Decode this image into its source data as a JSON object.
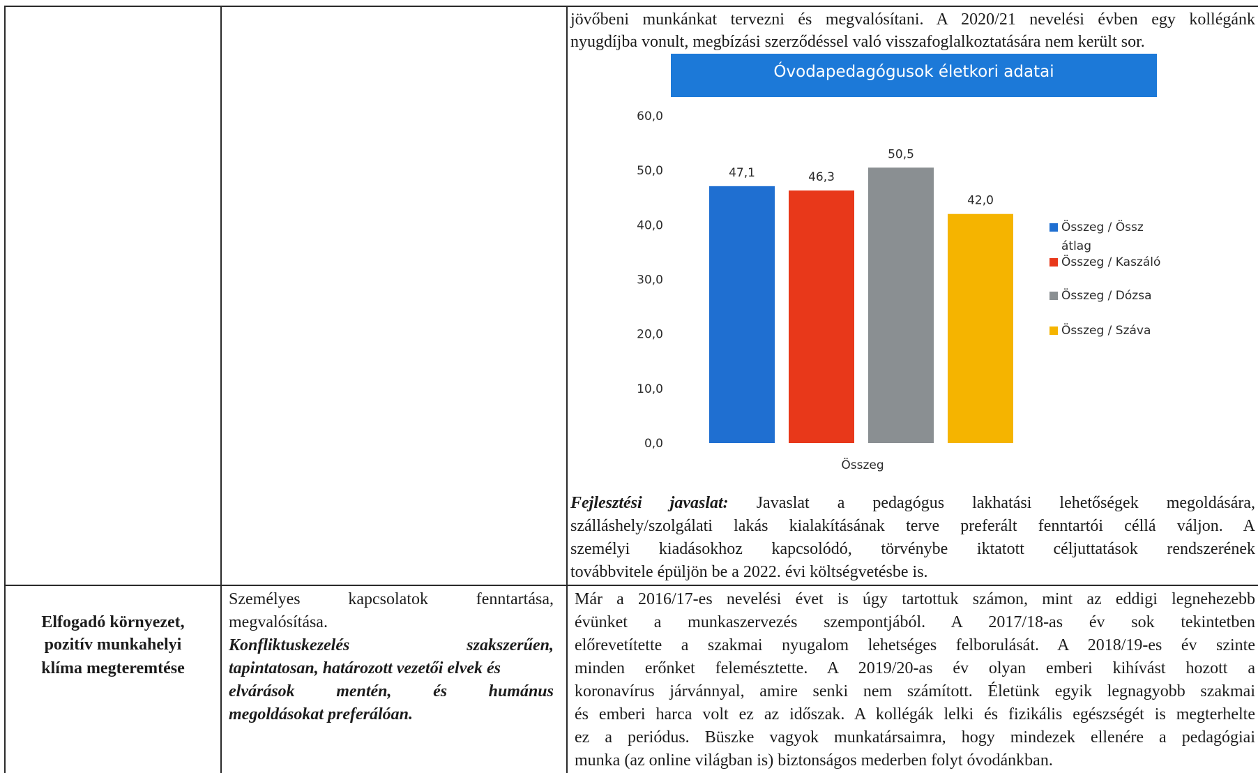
{
  "top_row": {
    "text_lines": [
      "jövőbeni munkánkat tervezni és megvalósítani. A 2020/21 nevelési évben egy kollégánk",
      "nyugdíjba vonult, megbízási szerződéssel való visszafoglalkoztatására nem került sor."
    ],
    "proposal_label": "Fejlesztési javaslat:",
    "proposal_lines": [
      "Javaslat a pedagógus lakhatási lehetőségek megoldására,",
      "szálláshely/szolgálati lakás kialakításának terve preferált fenntartói céllá váljon. A",
      "személyi kiadásokhoz kapcsolódó, törvénybe iktatott céljuttatások rendszerének",
      "továbbvitele épüljön be a 2022. évi költségvetésbe is."
    ]
  },
  "chart_data": {
    "type": "bar",
    "title": "Óvodapedagógusok életkori adatai",
    "categories": [
      "Összeg"
    ],
    "series": [
      {
        "name": "Összeg / Össz átlag",
        "values": [
          47.1
        ],
        "label": "47,1",
        "color": "#1f6fd1"
      },
      {
        "name": "Összeg / Kaszáló",
        "values": [
          46.3
        ],
        "label": "46,3",
        "color": "#e8381a"
      },
      {
        "name": "Összeg / Dózsa",
        "values": [
          50.5
        ],
        "label": "50,5",
        "color": "#8a8f92"
      },
      {
        "name": "Összeg / Száva",
        "values": [
          42.0
        ],
        "label": "42,0",
        "color": "#f5b400"
      }
    ],
    "legend_lines": [
      [
        "Összeg / Össz",
        "átlag"
      ],
      [
        "Összeg / Kaszáló"
      ],
      [
        "Összeg / Dózsa"
      ],
      [
        "Összeg / Száva"
      ]
    ],
    "yticks": [
      "0,0",
      "10,0",
      "20,0",
      "30,0",
      "40,0",
      "50,0",
      "60,0"
    ],
    "ylim": [
      0,
      60
    ],
    "xlabel": "Összeg",
    "legend_position": "right",
    "grid": false
  },
  "bottom_row": {
    "heading_lines": [
      "Elfogadó környezet,",
      "pozitív munkahelyi",
      "klíma megteremtése"
    ],
    "middle_plain_lines": [
      [
        "Személyes",
        "kapcsolatok",
        "fenntartása,"
      ],
      [
        "megvalósítása."
      ]
    ],
    "middle_bold_lines": [
      [
        "Konfliktuskezelés",
        "szakszerűen,"
      ],
      [
        "tapintatosan, határozott vezetői elvek és"
      ],
      [
        "elvárások",
        "mentén,",
        "és",
        "humánus"
      ],
      [
        "megoldásokat preferálóan."
      ]
    ],
    "right_lines": [
      "Már a 2016/17-es nevelési évet is úgy tartottuk számon, mint az eddigi legnehezebb",
      "évünket a munkaszervezés szempontjából. A 2017/18-as év sok tekintetben",
      "előrevetítette a szakmai nyugalom lehetséges felborulását. A 2018/19-es év szinte",
      "minden erőnket felemésztette. A 2019/20-as év olyan emberi kihívást hozott a",
      "koronavírus járvánnyal, amire senki nem számított. Életünk egyik legnagyobb szakmai",
      "és emberi harca volt ez az időszak. A kollégák lelki és fizikális egészségét is megterhelte",
      "ez a periódus. Büszke vagyok munkatársaimra, hogy mindezek ellenére a pedagógiai",
      "munka (az online világban is) biztonságos mederben folyt óvodánkban."
    ]
  }
}
